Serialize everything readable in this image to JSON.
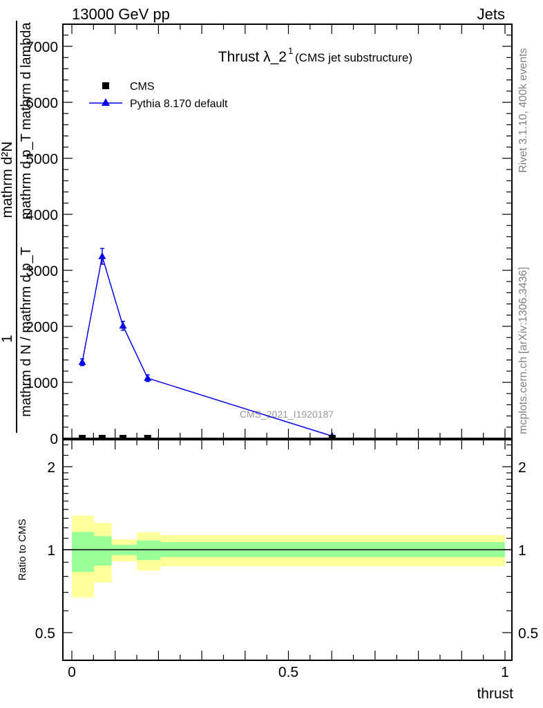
{
  "header": {
    "left": "13000 GeV pp",
    "right": "Jets"
  },
  "side": {
    "rivet": "Rivet 3.1.10,  400k events",
    "mcplots": "mcplots.cern.ch [arXiv:1306.3436]"
  },
  "watermark": "CMS_2021_I1920187",
  "colors": {
    "mc": "#0000ee",
    "band_inner": "#99ff99",
    "band_outer": "#ffff99",
    "data": "#000000"
  },
  "chart_data": [
    {
      "type": "line",
      "title": "Thrust λ_2",
      "title_sup": "1",
      "subtitle": "(CMS jet substructure)",
      "ylabel": {
        "num_top": "mathrm d²N",
        "num_bottom": "1",
        "den_top": "mathrm d p_T mathrm d lambda",
        "den_bottom": "mathrm d N / mathrm d p_T"
      },
      "xlim": [
        0,
        1
      ],
      "ylim": [
        0,
        7400
      ],
      "yticks": [
        0,
        1000,
        2000,
        3000,
        4000,
        5000,
        6000,
        7000
      ],
      "ytick_labels": [
        "0",
        "1000",
        "2000",
        "3000",
        "4000",
        "5000",
        "6000",
        "7000"
      ],
      "legend": {
        "position": "top-left",
        "entries": [
          "CMS",
          "Pythia 8.170 default"
        ]
      },
      "series": [
        {
          "name": "CMS",
          "marker": "square",
          "x": [
            0.024,
            0.07,
            0.118,
            0.175,
            0.601
          ],
          "y": [
            0,
            0,
            0,
            0,
            0
          ]
        },
        {
          "name": "Pythia 8.170 default",
          "marker": "triangle",
          "x": [
            0.024,
            0.07,
            0.118,
            0.175,
            0.601
          ],
          "y": [
            1360,
            3250,
            2010,
            1075,
            40
          ],
          "yerr": [
            60,
            140,
            80,
            60,
            10
          ]
        }
      ]
    },
    {
      "type": "area",
      "ylabel": "Ratio to CMS",
      "xlabel": "thrust",
      "xlim": [
        0,
        1
      ],
      "ylim": [
        0.4,
        2.5
      ],
      "yscale": "log",
      "yticks": [
        0.5,
        1,
        2
      ],
      "ytick_labels": [
        "0.5",
        "1",
        "2"
      ],
      "xticks": [
        0,
        0.5,
        1
      ],
      "xtick_labels": [
        "0",
        "0.5",
        "1"
      ],
      "bin_edges": [
        0,
        0.051,
        0.092,
        0.15,
        0.205,
        1.0
      ],
      "outer_band": {
        "upper": [
          1.33,
          1.25,
          1.09,
          1.155,
          1.13
        ],
        "lower": [
          0.67,
          0.76,
          0.906,
          0.84,
          0.87
        ]
      },
      "inner_band": {
        "upper": [
          1.16,
          1.12,
          1.04,
          1.08,
          1.065
        ],
        "lower": [
          0.83,
          0.875,
          0.955,
          0.917,
          0.94
        ]
      },
      "reference": 1
    }
  ]
}
